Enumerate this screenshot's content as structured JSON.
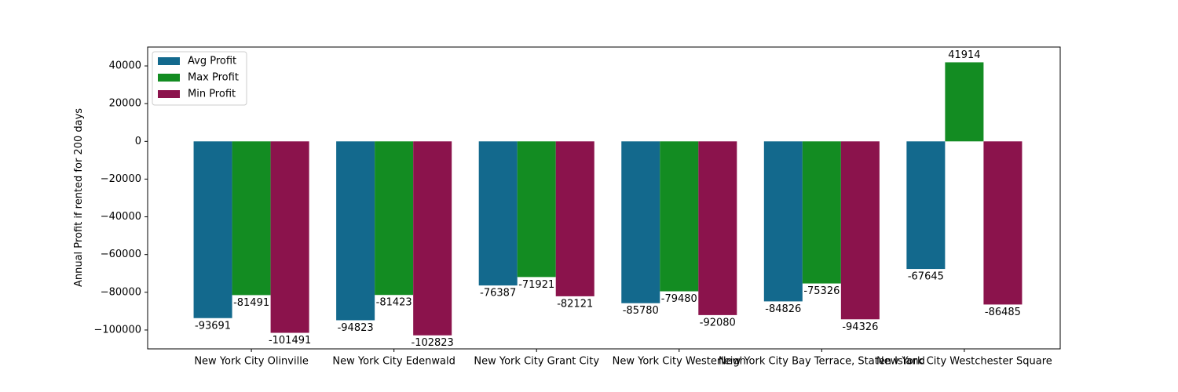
{
  "chart_data": {
    "type": "bar",
    "title": "",
    "xlabel": "",
    "ylabel": "Annual Profit if rented for 200 days",
    "categories": [
      "New York City Olinville",
      "New York City Edenwald",
      "New York City Grant City",
      "New York City Westerleigh",
      "New York City Bay Terrace, Staten Island",
      "New York City Westchester Square"
    ],
    "series": [
      {
        "name": "Avg Profit",
        "color": "#13698d",
        "values": [
          -93691,
          -94823,
          -76387,
          -85780,
          -84826,
          -67645
        ]
      },
      {
        "name": "Max Profit",
        "color": "#138c22",
        "values": [
          -81491,
          -81423,
          -71921,
          -79480,
          -75326,
          41914
        ]
      },
      {
        "name": "Min Profit",
        "color": "#8b134c",
        "values": [
          -101491,
          -102823,
          -82121,
          -92080,
          -94326,
          -86485
        ]
      }
    ],
    "ylim": [
      -110000,
      50000
    ],
    "yticks": [
      40000,
      20000,
      0,
      -20000,
      -40000,
      -60000,
      -80000,
      -100000
    ],
    "ytick_labels": [
      "40000",
      "20000",
      "0",
      "−20000",
      "−40000",
      "−60000",
      "−80000",
      "−100000"
    ],
    "grid": false,
    "legend_position": "top-left",
    "data_labels": true
  }
}
